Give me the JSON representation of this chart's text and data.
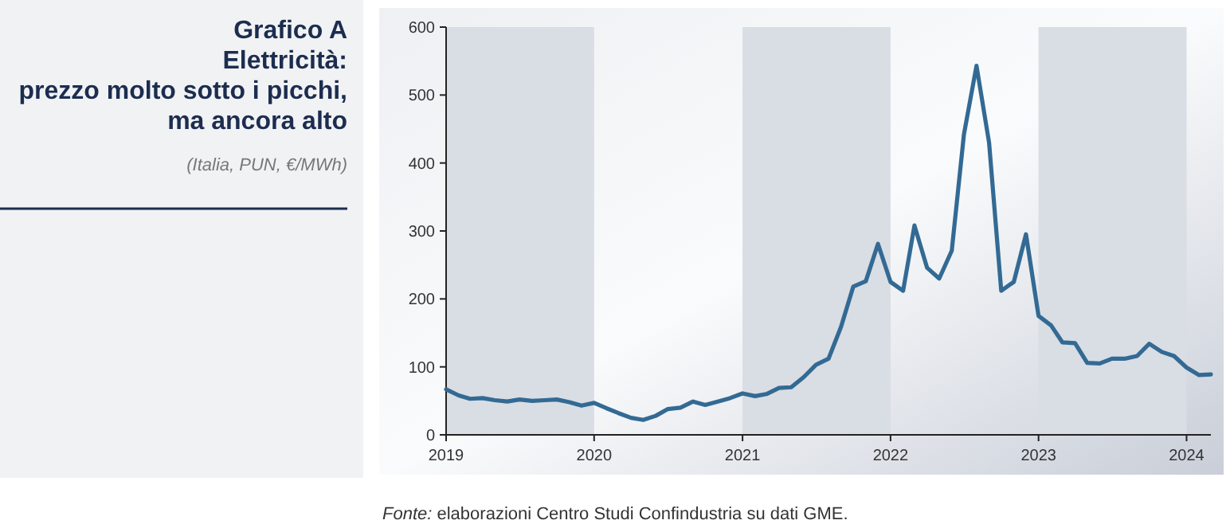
{
  "chart_data": {
    "type": "line",
    "title": "Grafico A\nElettricità:\nprezzo molto sotto i picchi,\nma ancora alto",
    "subtitle": "(Italia, PUN, €/MWh)",
    "annotations": [
      "Fonte: elaborazioni Centro Studi Confindustria su dati GME."
    ],
    "x": [
      "2019-01",
      "2019-02",
      "2019-03",
      "2019-04",
      "2019-05",
      "2019-06",
      "2019-07",
      "2019-08",
      "2019-09",
      "2019-10",
      "2019-11",
      "2019-12",
      "2020-01",
      "2020-02",
      "2020-03",
      "2020-04",
      "2020-05",
      "2020-06",
      "2020-07",
      "2020-08",
      "2020-09",
      "2020-10",
      "2020-11",
      "2020-12",
      "2021-01",
      "2021-02",
      "2021-03",
      "2021-04",
      "2021-05",
      "2021-06",
      "2021-07",
      "2021-08",
      "2021-09",
      "2021-10",
      "2021-11",
      "2021-12",
      "2022-01",
      "2022-02",
      "2022-03",
      "2022-04",
      "2022-05",
      "2022-06",
      "2022-07",
      "2022-08",
      "2022-09",
      "2022-10",
      "2022-11",
      "2022-12",
      "2023-01",
      "2023-02",
      "2023-03",
      "2023-04",
      "2023-05",
      "2023-06",
      "2023-07",
      "2023-08",
      "2023-09",
      "2023-10",
      "2023-11",
      "2023-12",
      "2024-01",
      "2024-02",
      "2024-03"
    ],
    "series": [
      {
        "color": "#336a94",
        "values": [
          67,
          58,
          53,
          54,
          51,
          49,
          52,
          50,
          51,
          52,
          48,
          43,
          47,
          39,
          32,
          25,
          22,
          28,
          38,
          40,
          49,
          44,
          49,
          54,
          61,
          57,
          60,
          69,
          70,
          85,
          103,
          112,
          159,
          218,
          226,
          281,
          225,
          212,
          308,
          246,
          230,
          271,
          442,
          543,
          430,
          212,
          225,
          295,
          175,
          161,
          136,
          135,
          106,
          105,
          112,
          112,
          116,
          134,
          122,
          116,
          99,
          88,
          89
        ]
      }
    ],
    "xlim": [
      "2019-01",
      "2024-03"
    ],
    "ylim": [
      0,
      600
    ],
    "xticks": [
      {
        "value": "2019-01",
        "label": "2019"
      },
      {
        "value": "2020-01",
        "label": "2020"
      },
      {
        "value": "2021-01",
        "label": "2021"
      },
      {
        "value": "2022-01",
        "label": "2022"
      },
      {
        "value": "2023-01",
        "label": "2023"
      },
      {
        "value": "2024-01",
        "label": "2024"
      }
    ],
    "yticks": [
      0,
      100,
      200,
      300,
      400,
      500,
      600
    ],
    "bands": [
      {
        "axis": "x",
        "from": "2019-01",
        "to": "2020-01",
        "color": "#d9dde4"
      },
      {
        "axis": "x",
        "from": "2021-01",
        "to": "2022-01",
        "color": "#d9dde4"
      },
      {
        "axis": "x",
        "from": "2023-01",
        "to": "2024-01",
        "color": "#d9dde4"
      }
    ],
    "grid": false,
    "marker": "none",
    "line_style": "solid"
  }
}
